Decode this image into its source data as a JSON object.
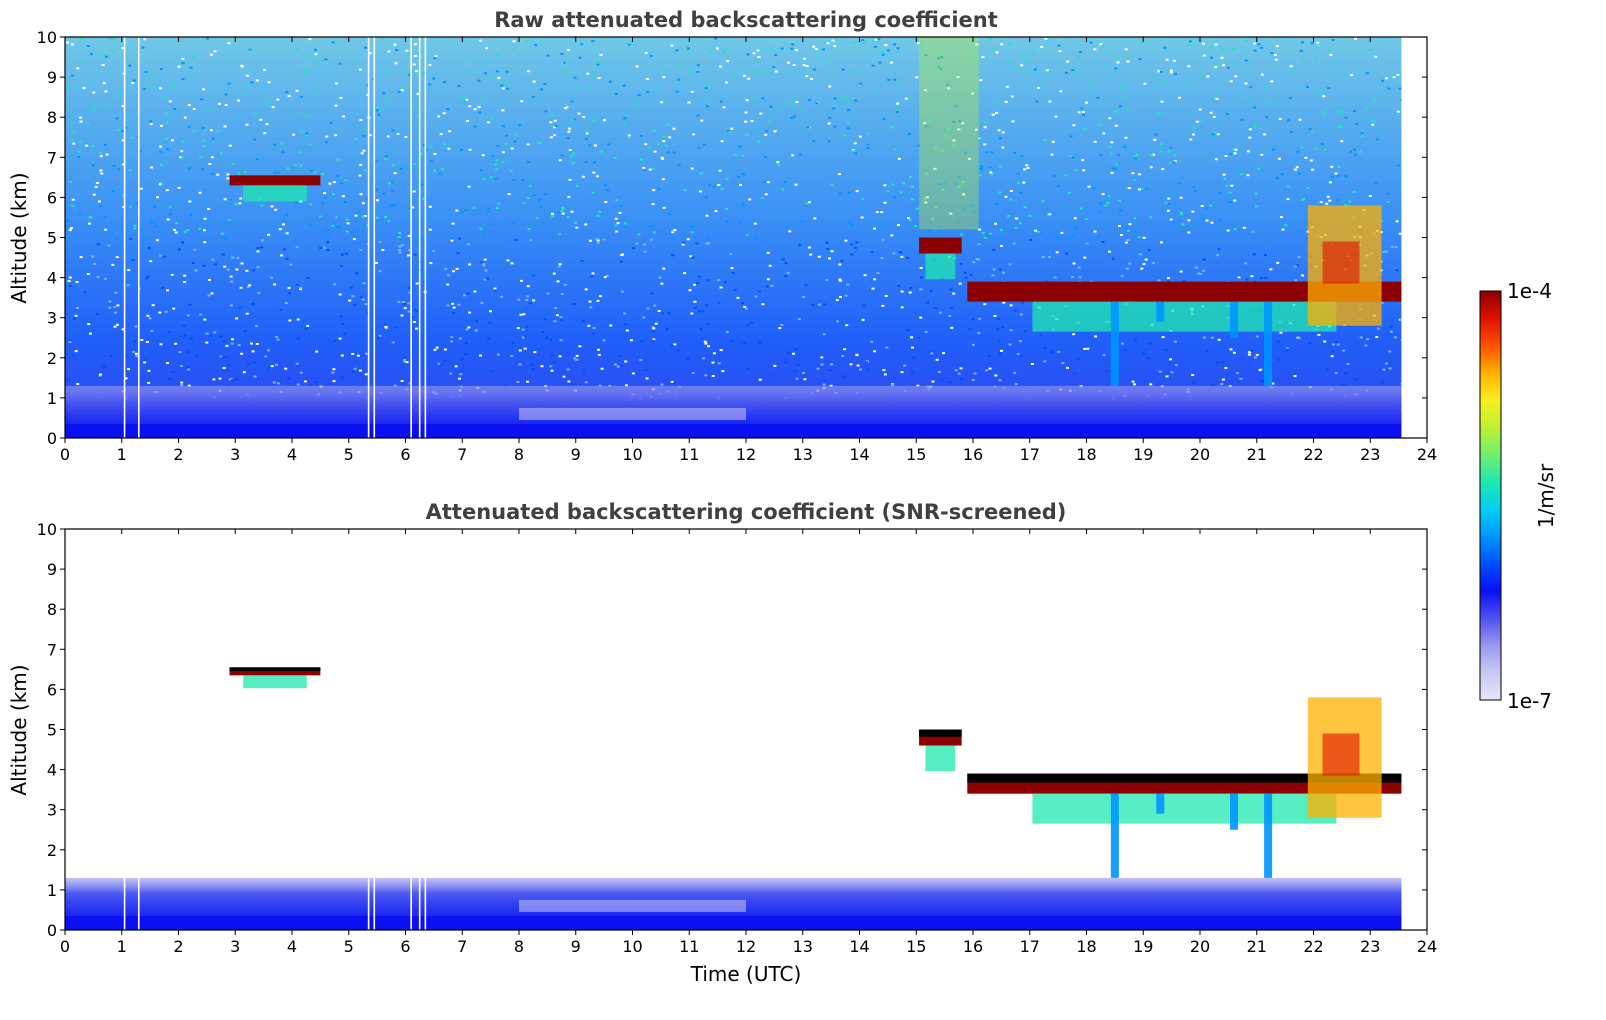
{
  "colors": {
    "colormap": [
      "#e6e6fa",
      "#c8c8f5",
      "#9a9aee",
      "#5050f0",
      "#0a10f0",
      "#0050ff",
      "#0095ff",
      "#00d0f0",
      "#20e8b0",
      "#70f070",
      "#c0f030",
      "#f8f020",
      "#ffb000",
      "#ff5000",
      "#e01000",
      "#8b0000"
    ],
    "background_raw": "#2a40f0",
    "cloud_core": "#b01000",
    "screened_top": "#000000"
  },
  "colorbar": {
    "max_label": "1e-4",
    "min_label": "1e-7",
    "unit_label": "1/m/sr",
    "scale": "log"
  },
  "chart_data": [
    {
      "type": "heatmap",
      "title": "Raw attenuated backscattering coefficient",
      "xlabel": "",
      "ylabel": "Altitude (km)",
      "xlim": [
        0,
        24
      ],
      "ylim": [
        0,
        10
      ],
      "xticks": [
        "0",
        "1",
        "2",
        "3",
        "4",
        "5",
        "6",
        "7",
        "8",
        "9",
        "10",
        "11",
        "12",
        "13",
        "14",
        "15",
        "16",
        "17",
        "18",
        "19",
        "20",
        "21",
        "22",
        "23",
        "24"
      ],
      "yticks": [
        "0",
        "1",
        "2",
        "3",
        "4",
        "5",
        "6",
        "7",
        "8",
        "9",
        "10"
      ],
      "data_end_x": 23.55,
      "features": [
        {
          "name": "boundary layer",
          "x": [
            0,
            23.55
          ],
          "altitude": [
            0,
            1.3
          ],
          "value": "1e-6"
        },
        {
          "name": "cloud",
          "x": [
            2.9,
            4.5
          ],
          "altitude": [
            6.3,
            6.55
          ],
          "value": "1e-4"
        },
        {
          "name": "cloud",
          "x": [
            15.05,
            15.8
          ],
          "altitude": [
            4.6,
            5.0
          ],
          "value": "1e-4"
        },
        {
          "name": "cloud",
          "x": [
            15.9,
            23.55
          ],
          "altitude": [
            3.4,
            3.9
          ],
          "value": "1e-4"
        },
        {
          "name": "cloud",
          "x": [
            21.9,
            23.2
          ],
          "altitude": [
            2.8,
            5.8
          ],
          "value": "3e-5"
        }
      ],
      "gaps_x": [
        1.05,
        1.3,
        5.35,
        5.45,
        6.1,
        6.25,
        6.35
      ]
    },
    {
      "type": "heatmap",
      "title": "Attenuated backscattering coefficient (SNR-screened)",
      "xlabel": "Time (UTC)",
      "ylabel": "Altitude (km)",
      "xlim": [
        0,
        24
      ],
      "ylim": [
        0,
        10
      ],
      "xticks": [
        "0",
        "1",
        "2",
        "3",
        "4",
        "5",
        "6",
        "7",
        "8",
        "9",
        "10",
        "11",
        "12",
        "13",
        "14",
        "15",
        "16",
        "17",
        "18",
        "19",
        "20",
        "21",
        "22",
        "23",
        "24"
      ],
      "yticks": [
        "0",
        "1",
        "2",
        "3",
        "4",
        "5",
        "6",
        "7",
        "8",
        "9",
        "10"
      ],
      "data_end_x": 23.55,
      "features": [
        {
          "name": "boundary layer",
          "x": [
            0,
            23.55
          ],
          "altitude": [
            0,
            1.3
          ],
          "value": "1e-6"
        },
        {
          "name": "cloud",
          "x": [
            2.9,
            4.5
          ],
          "altitude": [
            6.35,
            6.55
          ],
          "value": "1e-4"
        },
        {
          "name": "cloud",
          "x": [
            15.05,
            15.8
          ],
          "altitude": [
            4.6,
            5.0
          ],
          "value": "1e-4"
        },
        {
          "name": "cloud",
          "x": [
            15.9,
            23.55
          ],
          "altitude": [
            3.4,
            3.9
          ],
          "value": "1e-4"
        },
        {
          "name": "cloud",
          "x": [
            21.9,
            23.2
          ],
          "altitude": [
            2.8,
            5.8
          ],
          "value": "3e-5"
        }
      ],
      "gaps_x": [
        1.05,
        1.3,
        5.35,
        5.45,
        6.1,
        6.25,
        6.35
      ]
    }
  ]
}
